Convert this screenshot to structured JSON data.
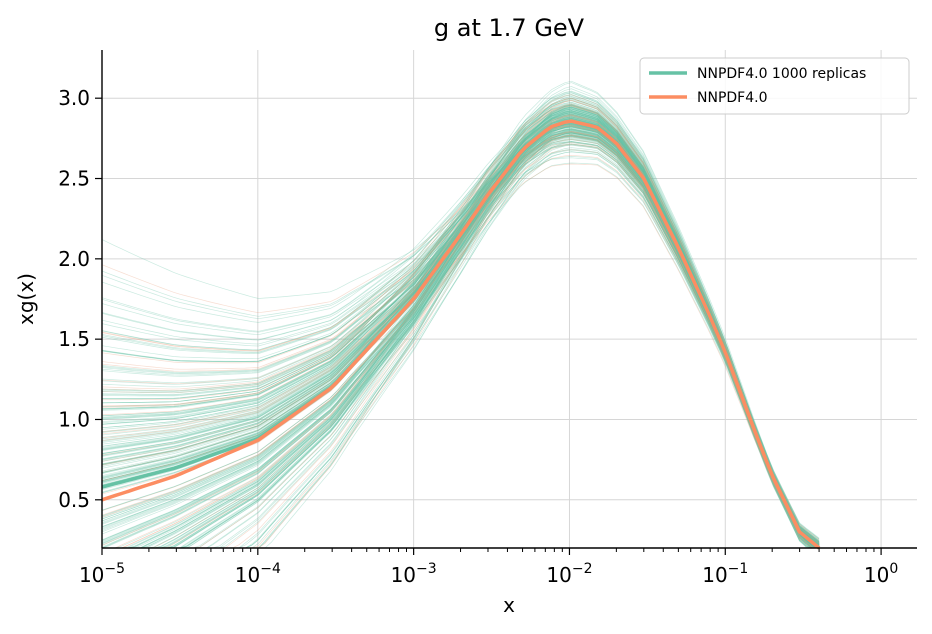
{
  "chart_data": {
    "type": "line",
    "title": "g at 1.7 GeV",
    "xlabel": "x",
    "ylabel": "xg(x)",
    "xscale": "log",
    "xlim": [
      1e-05,
      1.7
    ],
    "ylim": [
      0.2,
      3.3
    ],
    "grid": true,
    "legend_position": "top-right",
    "x_ticks": [
      {
        "value": 1e-05,
        "base": "10",
        "exp": "−5"
      },
      {
        "value": 0.0001,
        "base": "10",
        "exp": "−4"
      },
      {
        "value": 0.001,
        "base": "10",
        "exp": "−3"
      },
      {
        "value": 0.01,
        "base": "10",
        "exp": "−2"
      },
      {
        "value": 0.1,
        "base": "10",
        "exp": "−1"
      },
      {
        "value": 1,
        "base": "10",
        "exp": "0"
      }
    ],
    "y_ticks": [
      {
        "value": 0.5,
        "label": "0.5"
      },
      {
        "value": 1.0,
        "label": "1.0"
      },
      {
        "value": 1.5,
        "label": "1.5"
      },
      {
        "value": 2.0,
        "label": "2.0"
      },
      {
        "value": 2.5,
        "label": "2.5"
      },
      {
        "value": 3.0,
        "label": "3.0"
      }
    ],
    "series": [
      {
        "name": "NNPDF4.0 1000 replicas",
        "color": "#66c2a5",
        "description_values": "replica band; mean shown",
        "x": [
          1e-05,
          3e-05,
          0.0001,
          0.0003,
          0.001,
          0.002,
          0.003,
          0.005,
          0.0075,
          0.01,
          0.015,
          0.02,
          0.03,
          0.05,
          0.075,
          0.1,
          0.15,
          0.2,
          0.3,
          0.4
        ],
        "values": [
          0.58,
          0.7,
          0.88,
          1.2,
          1.75,
          2.15,
          2.4,
          2.68,
          2.82,
          2.86,
          2.82,
          2.72,
          2.5,
          2.07,
          1.7,
          1.42,
          0.96,
          0.65,
          0.3,
          0.2
        ]
      },
      {
        "name": "NNPDF4.0",
        "color": "#fc8d62",
        "x": [
          1e-05,
          3e-05,
          0.0001,
          0.0003,
          0.001,
          0.002,
          0.003,
          0.005,
          0.0075,
          0.01,
          0.015,
          0.02,
          0.03,
          0.05,
          0.075,
          0.1,
          0.15,
          0.2,
          0.3,
          0.4
        ],
        "values": [
          0.5,
          0.65,
          0.87,
          1.2,
          1.75,
          2.15,
          2.4,
          2.68,
          2.82,
          2.86,
          2.82,
          2.72,
          2.5,
          2.07,
          1.7,
          1.42,
          0.96,
          0.65,
          0.3,
          0.2
        ]
      }
    ]
  }
}
